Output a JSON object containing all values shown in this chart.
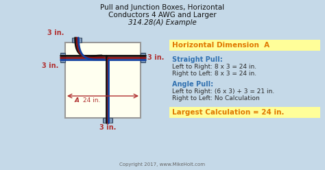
{
  "title_line1": "Pull and Junction Boxes, Horizontal",
  "title_line2": "Conductors 4 AWG and Larger",
  "title_line3": "314.28(A) Example",
  "bg_color": "#c5d9e8",
  "box_fill": "#fffff0",
  "box_edge": "#999999",
  "highlight_yellow": "#fffe99",
  "header_color": "#e07800",
  "label_blue": "#3070b0",
  "label_dark": "#2a2a2a",
  "dim_red": "#b03030",
  "copyright": "Copyright 2017, www.MikeHolt.com",
  "right_panel": {
    "header": "Horizontal Dimension  A",
    "straight_title": "Straight Pull:",
    "straight_line1": "Left to Right: 8 x 3 = 24 in.",
    "straight_line2": "Right to Left: 8 x 3 = 24 in.",
    "angle_title": "Angle Pull:",
    "angle_line1": "Left to Right: (6 x 3) + 3 = 21 in.",
    "angle_line2": "Right to Left: No Calculation",
    "largest": "Largest Calculation = 24 in."
  },
  "dim_labels": {
    "top": "3 in.",
    "right": "3 in.",
    "left": "3 in.",
    "bottom": "3 in.",
    "horiz": "24 in.",
    "A": "A"
  },
  "wire_colors": [
    "#101010",
    "#8B1010",
    "#1040a0"
  ],
  "wire_offsets": [
    -3,
    0,
    3
  ]
}
